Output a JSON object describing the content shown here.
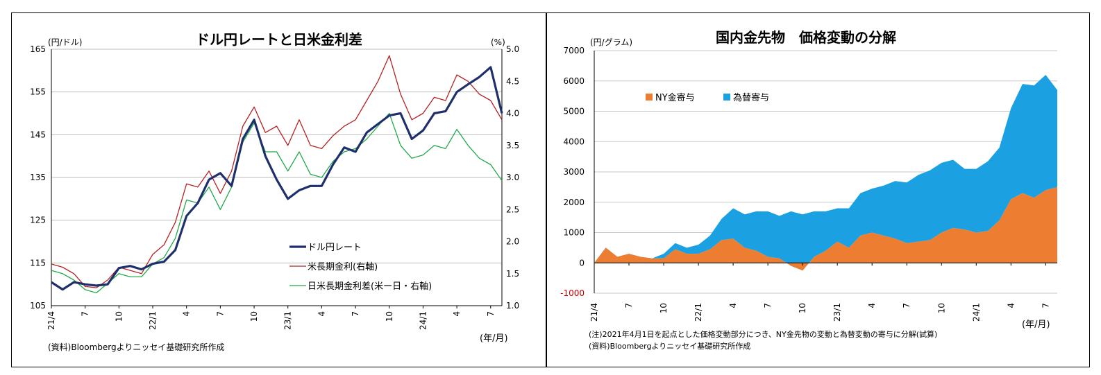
{
  "chart_data": [
    {
      "type": "line",
      "title": "ドル円レートと日米金利差",
      "ylabel_left": "(円/ドル)",
      "ylabel_right": "(%)",
      "xlabel": "(年/月)",
      "source": "(資料)Bloombergよりニッセイ基礎研究所作成",
      "ylim_left": [
        105,
        165
      ],
      "ylim_right": [
        1.0,
        5.0
      ],
      "yticks_left": [
        "105",
        "115",
        "125",
        "135",
        "145",
        "155",
        "165"
      ],
      "yticks_right": [
        "1.0",
        "1.5",
        "2.0",
        "2.5",
        "3.0",
        "3.5",
        "4.0",
        "4.5",
        "5.0"
      ],
      "xticks": [
        "21/4",
        "7",
        "10",
        "22/1",
        "4",
        "7",
        "10",
        "23/1",
        "4",
        "7",
        "10",
        "24/1",
        "4",
        "7"
      ],
      "grid": true,
      "legend_position": "bottom-right",
      "colors": {
        "usdjpy": "#1f2f6b",
        "us_yield": "#b22222",
        "spread": "#22a84a"
      },
      "series": [
        {
          "name": "ドル円レート",
          "axis": "left",
          "color": "#1f2f6b",
          "x": [
            "2021-04",
            "2021-05",
            "2021-06",
            "2021-07",
            "2021-08",
            "2021-09",
            "2021-10",
            "2021-11",
            "2021-12",
            "2022-01",
            "2022-02",
            "2022-03",
            "2022-04",
            "2022-05",
            "2022-06",
            "2022-07",
            "2022-08",
            "2022-09",
            "2022-10",
            "2022-11",
            "2022-12",
            "2023-01",
            "2023-02",
            "2023-03",
            "2023-04",
            "2023-05",
            "2023-06",
            "2023-07",
            "2023-08",
            "2023-09",
            "2023-10",
            "2023-11",
            "2023-12",
            "2024-01",
            "2024-02",
            "2024-03",
            "2024-04",
            "2024-05",
            "2024-06",
            "2024-07",
            "2024-08"
          ],
          "values": [
            110.5,
            108.8,
            110.5,
            110.0,
            109.7,
            110.0,
            113.8,
            114.3,
            113.5,
            114.8,
            115.3,
            118.0,
            126.0,
            129.0,
            134.5,
            136.0,
            133.0,
            144.0,
            148.5,
            140.0,
            134.5,
            130.0,
            132.0,
            133.0,
            133.0,
            138.0,
            142.0,
            141.0,
            145.5,
            147.5,
            149.5,
            150.0,
            144.0,
            146.0,
            150.0,
            150.5,
            155.0,
            156.8,
            158.5,
            160.8,
            150.0
          ]
        },
        {
          "name": "米長期金利(右軸)",
          "axis": "right",
          "color": "#b22222",
          "x": [
            "2021-04",
            "2021-05",
            "2021-06",
            "2021-07",
            "2021-08",
            "2021-09",
            "2021-10",
            "2021-11",
            "2021-12",
            "2022-01",
            "2022-02",
            "2022-03",
            "2022-04",
            "2022-05",
            "2022-06",
            "2022-07",
            "2022-08",
            "2022-09",
            "2022-10",
            "2022-11",
            "2022-12",
            "2023-01",
            "2023-02",
            "2023-03",
            "2023-04",
            "2023-05",
            "2023-06",
            "2023-07",
            "2023-08",
            "2023-09",
            "2023-10",
            "2023-11",
            "2023-12",
            "2024-01",
            "2024-02",
            "2024-03",
            "2024-04",
            "2024-05",
            "2024-06",
            "2024-07",
            "2024-08"
          ],
          "values": [
            1.65,
            1.6,
            1.5,
            1.3,
            1.28,
            1.4,
            1.6,
            1.55,
            1.5,
            1.8,
            1.95,
            2.3,
            2.9,
            2.85,
            3.1,
            2.75,
            3.1,
            3.8,
            4.1,
            3.7,
            3.8,
            3.5,
            3.9,
            3.5,
            3.45,
            3.65,
            3.8,
            3.9,
            4.2,
            4.5,
            4.9,
            4.3,
            3.9,
            4.0,
            4.25,
            4.2,
            4.6,
            4.5,
            4.3,
            4.2,
            3.9
          ]
        },
        {
          "name": "日米長期金利差(米ー日・右軸)",
          "axis": "right",
          "color": "#22a84a",
          "x": [
            "2021-04",
            "2021-05",
            "2021-06",
            "2021-07",
            "2021-08",
            "2021-09",
            "2021-10",
            "2021-11",
            "2021-12",
            "2022-01",
            "2022-02",
            "2022-03",
            "2022-04",
            "2022-05",
            "2022-06",
            "2022-07",
            "2022-08",
            "2022-09",
            "2022-10",
            "2022-11",
            "2022-12",
            "2023-01",
            "2023-02",
            "2023-03",
            "2023-04",
            "2023-05",
            "2023-06",
            "2023-07",
            "2023-08",
            "2023-09",
            "2023-10",
            "2023-11",
            "2023-12",
            "2024-01",
            "2024-02",
            "2024-03",
            "2024-04",
            "2024-05",
            "2024-06",
            "2024-07",
            "2024-08"
          ],
          "values": [
            1.55,
            1.5,
            1.4,
            1.25,
            1.2,
            1.35,
            1.5,
            1.45,
            1.45,
            1.65,
            1.75,
            2.05,
            2.65,
            2.6,
            2.85,
            2.5,
            2.85,
            3.55,
            3.85,
            3.4,
            3.4,
            3.1,
            3.4,
            3.05,
            3.0,
            3.25,
            3.4,
            3.45,
            3.6,
            3.8,
            4.0,
            3.5,
            3.3,
            3.35,
            3.5,
            3.45,
            3.75,
            3.5,
            3.3,
            3.2,
            2.95
          ]
        }
      ]
    },
    {
      "type": "area",
      "stacked": true,
      "title": "国内金先物　価格変動の分解",
      "ylabel": "(円/グラム)",
      "xlabel": "(年/月)",
      "ylim": [
        -1000,
        7000
      ],
      "yticks": [
        "-1000",
        "0",
        "1000",
        "2000",
        "3000",
        "4000",
        "5000",
        "6000",
        "7000"
      ],
      "xticks": [
        "21/4",
        "7",
        "10",
        "22/1",
        "4",
        "7",
        "10",
        "23/1",
        "4",
        "7",
        "10",
        "24/1",
        "4",
        "7"
      ],
      "grid": true,
      "legend_position": "top-left",
      "note": "(注)2021年4月1日を起点とした価格変動部分につき、NY金先物の変動と為替変動の寄与に分解(試算)",
      "source": "(資料)Bloombergよりニッセイ基礎研究所作成",
      "colors": {
        "ny_gold": "#ed7d31",
        "fx": "#1ba1e2"
      },
      "series": [
        {
          "name": "NY金寄与",
          "color": "#ed7d31",
          "x": [
            "2021-04",
            "2021-05",
            "2021-06",
            "2021-07",
            "2021-08",
            "2021-09",
            "2021-10",
            "2021-11",
            "2021-12",
            "2022-01",
            "2022-02",
            "2022-03",
            "2022-04",
            "2022-05",
            "2022-06",
            "2022-07",
            "2022-08",
            "2022-09",
            "2022-10",
            "2022-11",
            "2022-12",
            "2023-01",
            "2023-02",
            "2023-03",
            "2023-04",
            "2023-05",
            "2023-06",
            "2023-07",
            "2023-08",
            "2023-09",
            "2023-10",
            "2023-11",
            "2023-12",
            "2024-01",
            "2024-02",
            "2024-03",
            "2024-04",
            "2024-05",
            "2024-06",
            "2024-07",
            "2024-08"
          ],
          "values": [
            0,
            500,
            200,
            300,
            200,
            150,
            150,
            450,
            300,
            300,
            450,
            750,
            800,
            500,
            400,
            200,
            150,
            -100,
            -250,
            200,
            400,
            700,
            500,
            900,
            1000,
            900,
            800,
            650,
            700,
            750,
            1000,
            1150,
            1100,
            1000,
            1050,
            1400,
            2100,
            2300,
            2150,
            2400,
            2500
          ]
        },
        {
          "name": "為替寄与",
          "color": "#1ba1e2",
          "x": [
            "2021-04",
            "2021-05",
            "2021-06",
            "2021-07",
            "2021-08",
            "2021-09",
            "2021-10",
            "2021-11",
            "2021-12",
            "2022-01",
            "2022-02",
            "2022-03",
            "2022-04",
            "2022-05",
            "2022-06",
            "2022-07",
            "2022-08",
            "2022-09",
            "2022-10",
            "2022-11",
            "2022-12",
            "2023-01",
            "2023-02",
            "2023-03",
            "2023-04",
            "2023-05",
            "2023-06",
            "2023-07",
            "2023-08",
            "2023-09",
            "2023-10",
            "2023-11",
            "2023-12",
            "2024-01",
            "2024-02",
            "2024-03",
            "2024-04",
            "2024-05",
            "2024-06",
            "2024-07",
            "2024-08"
          ],
          "values": [
            0,
            -100,
            0,
            -50,
            -50,
            0,
            150,
            200,
            200,
            300,
            450,
            700,
            1000,
            1100,
            1300,
            1500,
            1400,
            1800,
            1850,
            1500,
            1300,
            1100,
            1300,
            1400,
            1450,
            1650,
            1900,
            2000,
            2200,
            2300,
            2300,
            2250,
            2000,
            2100,
            2300,
            2400,
            3000,
            3600,
            3700,
            3800,
            3200
          ]
        }
      ]
    }
  ]
}
